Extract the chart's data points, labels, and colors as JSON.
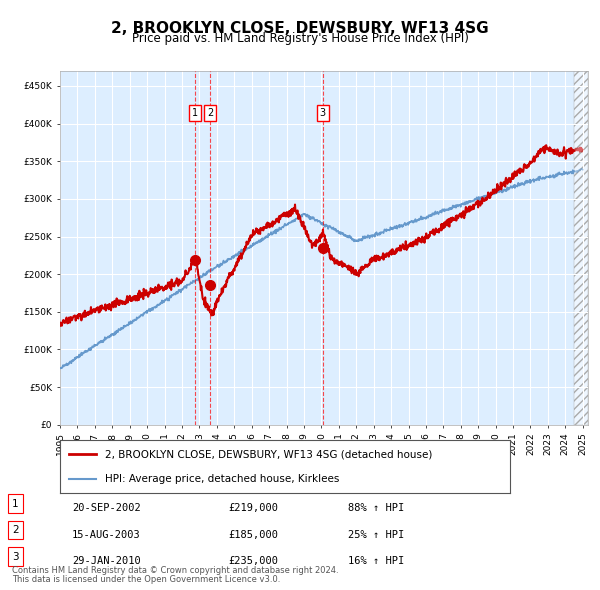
{
  "title": "2, BROOKLYN CLOSE, DEWSBURY, WF13 4SG",
  "subtitle": "Price paid vs. HM Land Registry's House Price Index (HPI)",
  "sale_label": "2, BROOKLYN CLOSE, DEWSBURY, WF13 4SG (detached house)",
  "hpi_label": "HPI: Average price, detached house, Kirklees",
  "footer1": "Contains HM Land Registry data © Crown copyright and database right 2024.",
  "footer2": "This data is licensed under the Open Government Licence v3.0.",
  "sale_color": "#cc0000",
  "hpi_color": "#6699cc",
  "background_color": "#ddeeff",
  "transactions": [
    {
      "id": 1,
      "date": "20-SEP-2002",
      "date_x": 2002.72,
      "price": 219000,
      "pct": "88%",
      "dir": "↑"
    },
    {
      "id": 2,
      "date": "15-AUG-2003",
      "date_x": 2003.62,
      "price": 185000,
      "pct": "25%",
      "dir": "↑"
    },
    {
      "id": 3,
      "date": "29-JAN-2010",
      "date_x": 2010.08,
      "price": 235000,
      "pct": "16%",
      "dir": "↑"
    }
  ],
  "ylim": [
    0,
    470000
  ],
  "xlim_start": 1995.0,
  "xlim_end": 2025.3,
  "future_start": 2024.5
}
